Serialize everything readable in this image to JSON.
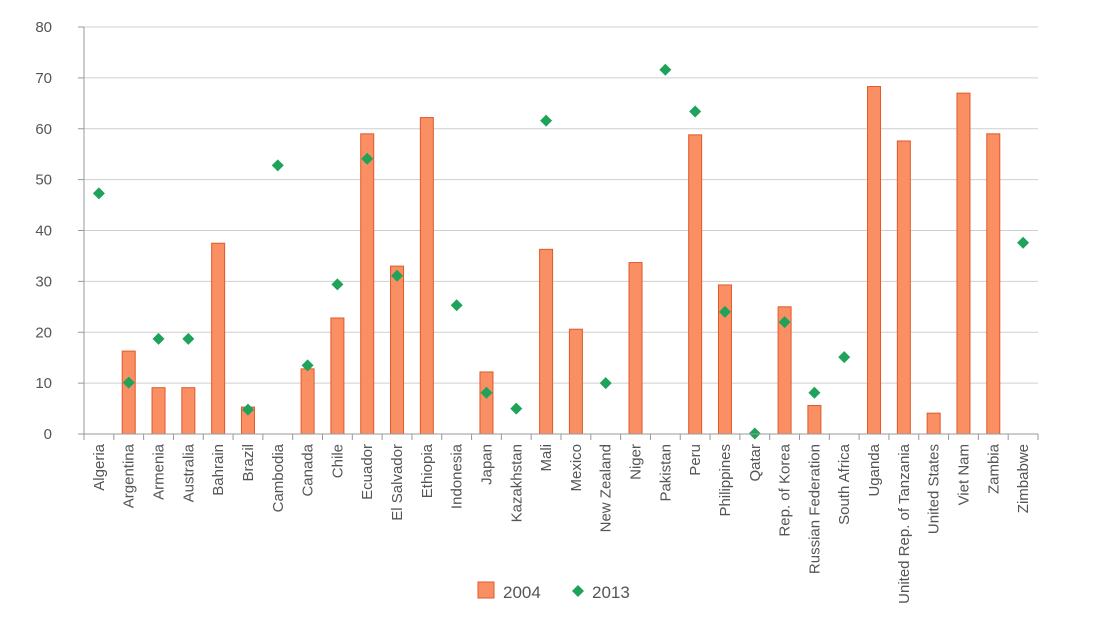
{
  "chart_data": {
    "type": "bar",
    "categories": [
      "Algeria",
      "Argentina",
      "Armenia",
      "Australia",
      "Bahrain",
      "Brazil",
      "Cambodia",
      "Canada",
      "Chile",
      "Ecuador",
      "El Salvador",
      "Ethiopia",
      "Indonesia",
      "Japan",
      "Kazakhstan",
      "Mali",
      "Mexico",
      "New Zealand",
      "Niger",
      "Pakistan",
      "Peru",
      "Philippines",
      "Qatar",
      "Rep. of Korea",
      "Russian Federation",
      "South Africa",
      "Uganda",
      "United Rep. of Tanzania",
      "United States",
      "Viet Nam",
      "Zambia",
      "Zimbabwe"
    ],
    "series": [
      {
        "name": "2004",
        "kind": "bar",
        "color": "#f98f63",
        "stroke": "#e05a2a",
        "values": [
          null,
          16.3,
          9.1,
          9.1,
          37.5,
          5.3,
          null,
          12.8,
          22.8,
          59.0,
          33.0,
          62.2,
          null,
          12.2,
          null,
          36.3,
          20.6,
          null,
          33.7,
          null,
          58.8,
          29.3,
          null,
          25.0,
          5.6,
          null,
          68.3,
          57.6,
          4.1,
          67.0,
          59.0,
          null
        ]
      },
      {
        "name": "2013",
        "kind": "marker",
        "color": "#1fa35a",
        "values": [
          47.3,
          10.1,
          18.7,
          18.7,
          null,
          4.8,
          52.8,
          13.5,
          29.4,
          54.1,
          31.1,
          null,
          25.3,
          8.1,
          5.0,
          61.6,
          null,
          10.0,
          null,
          71.6,
          63.4,
          24.0,
          0.1,
          22.0,
          8.1,
          15.1,
          null,
          null,
          null,
          null,
          null,
          37.6
        ]
      }
    ],
    "ylim": [
      0,
      80
    ],
    "yticks": [
      0,
      10,
      20,
      30,
      40,
      50,
      60,
      70,
      80
    ],
    "xlabel": "",
    "ylabel": "",
    "title": "",
    "grid": true,
    "legend_position": "bottom-center"
  }
}
